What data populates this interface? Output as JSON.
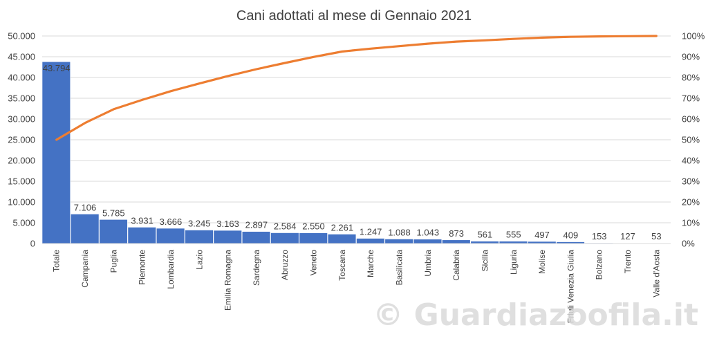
{
  "chart_data": {
    "type": "bar",
    "title": "Cani adottati al mese di Gennaio 2021",
    "categories": [
      "Totale",
      "Campania",
      "Puglia",
      "Piemonte",
      "Lombardia",
      "Lazio",
      "Emilia Romagna",
      "Sardegna",
      "Abruzzo",
      "Veneto",
      "Toscana",
      "Marche",
      "Basilicata",
      "Umbria",
      "Calabria",
      "Sicilia",
      "Liguria",
      "Molise",
      "Friuli Venezia Giulia",
      "Bolzano",
      "Trento",
      "Valle d'Aosta"
    ],
    "series": [
      {
        "type": "bar",
        "values": [
          43794,
          7106,
          5785,
          3931,
          3666,
          3245,
          3163,
          2897,
          2584,
          2550,
          2261,
          1247,
          1088,
          1043,
          873,
          561,
          555,
          497,
          409,
          153,
          127,
          53
        ],
        "value_labels": [
          "43.794",
          "7.106",
          "5.785",
          "3.931",
          "3.666",
          "3.245",
          "3.163",
          "2.897",
          "2.584",
          "2.550",
          "2.261",
          "1.247",
          "1.088",
          "1.043",
          "873",
          "561",
          "555",
          "497",
          "409",
          "153",
          "127",
          "53"
        ],
        "color": "#4472c4"
      },
      {
        "type": "line",
        "axis": "right",
        "values": [
          50.0,
          58.1,
          64.7,
          69.2,
          73.4,
          77.1,
          80.7,
          84.0,
          87.0,
          89.9,
          92.5,
          93.9,
          95.1,
          96.3,
          97.3,
          97.9,
          98.6,
          99.2,
          99.6,
          99.8,
          99.9,
          100.0
        ],
        "color": "#ed7d31"
      }
    ],
    "y_left": {
      "ylim": [
        0,
        50000
      ],
      "ticks": [
        "0",
        "5.000",
        "10.000",
        "15.000",
        "20.000",
        "25.000",
        "30.000",
        "35.000",
        "40.000",
        "45.000",
        "50.000"
      ]
    },
    "y_right": {
      "ylim": [
        0,
        100
      ],
      "ticks": [
        "0%",
        "10%",
        "20%",
        "30%",
        "40%",
        "50%",
        "60%",
        "70%",
        "80%",
        "90%",
        "100%"
      ]
    },
    "grid": true,
    "legend": "none"
  },
  "watermark": {
    "text": "© Guardiazoofila.it"
  }
}
